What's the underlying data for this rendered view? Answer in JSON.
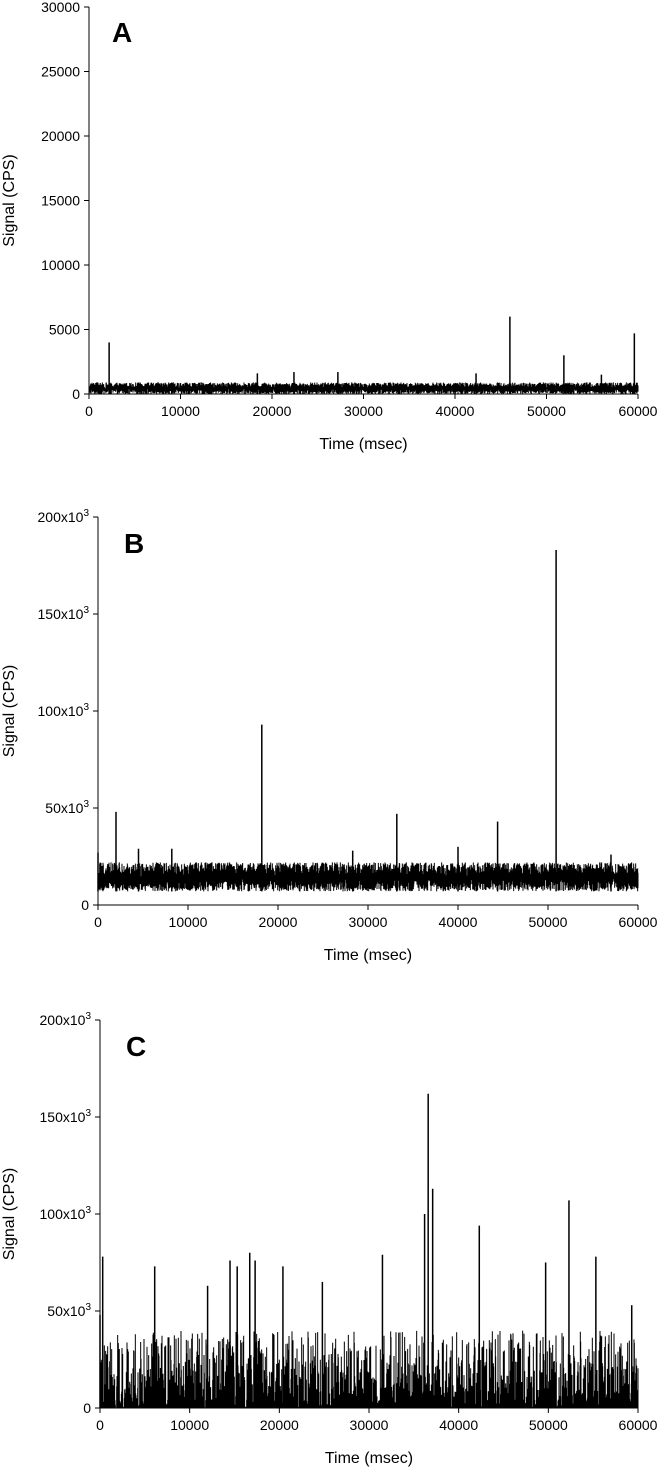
{
  "chart_data": [
    {
      "type": "line",
      "panel_label": "A",
      "xlabel": "Time (msec)",
      "ylabel": "Signal (CPS)",
      "xlim": [
        0,
        60000
      ],
      "ylim": [
        0,
        30000
      ],
      "xticks": [
        0,
        10000,
        20000,
        30000,
        40000,
        50000,
        60000
      ],
      "xtick_labels": [
        "0",
        "10000",
        "20000",
        "30000",
        "40000",
        "50000",
        "60000"
      ],
      "yticks": [
        0,
        5000,
        10000,
        15000,
        20000,
        25000,
        30000
      ],
      "ytick_labels": [
        "0",
        "5000",
        "10000",
        "15000",
        "20000",
        "25000",
        "30000"
      ],
      "grid": false,
      "baseline_noise": {
        "low": 0,
        "high": 900,
        "x_start": 0,
        "x_end": 60000
      },
      "spikes": {
        "x": [
          2200,
          18400,
          22400,
          27200,
          42300,
          46000,
          51900,
          56000,
          59600
        ],
        "y": [
          4000,
          1600,
          1700,
          1700,
          1600,
          6000,
          3000,
          1500,
          4700
        ]
      }
    },
    {
      "type": "line",
      "panel_label": "B",
      "xlabel": "Time (msec)",
      "ylabel": "Signal (CPS)",
      "xlim": [
        0,
        60000
      ],
      "ylim": [
        0,
        200000
      ],
      "xticks": [
        0,
        10000,
        20000,
        30000,
        40000,
        50000,
        60000
      ],
      "xtick_labels": [
        "0",
        "10000",
        "20000",
        "30000",
        "40000",
        "50000",
        "60000"
      ],
      "yticks": [
        0,
        50000,
        100000,
        150000,
        200000
      ],
      "ytick_labels": [
        {
          "base": "0",
          "exp": ""
        },
        {
          "base": "50x10",
          "exp": "3"
        },
        {
          "base": "100x10",
          "exp": "3"
        },
        {
          "base": "150x10",
          "exp": "3"
        },
        {
          "base": "200x10",
          "exp": "3"
        }
      ],
      "grid": false,
      "baseline_noise": {
        "low": 7000,
        "high": 22000,
        "x_start": 0,
        "x_end": 60000
      },
      "spikes": {
        "x": [
          0,
          2000,
          4500,
          8200,
          18200,
          28300,
          33200,
          40000,
          44400,
          50900,
          57000
        ],
        "y": [
          27000,
          48000,
          29000,
          29000,
          93000,
          28000,
          47000,
          30000,
          43000,
          183000,
          26000
        ]
      }
    },
    {
      "type": "line",
      "panel_label": "C",
      "xlabel": "Time (msec)",
      "ylabel": "Signal (CPS)",
      "xlim": [
        0,
        60000
      ],
      "ylim": [
        0,
        200000
      ],
      "xticks": [
        0,
        10000,
        20000,
        30000,
        40000,
        50000,
        60000
      ],
      "xtick_labels": [
        "0",
        "10000",
        "20000",
        "30000",
        "40000",
        "50000",
        "60000"
      ],
      "yticks": [
        0,
        50000,
        100000,
        150000,
        200000
      ],
      "ytick_labels": [
        {
          "base": "0",
          "exp": ""
        },
        {
          "base": "50x10",
          "exp": "3"
        },
        {
          "base": "100x10",
          "exp": "3"
        },
        {
          "base": "150x10",
          "exp": "3"
        },
        {
          "base": "200x10",
          "exp": "3"
        }
      ],
      "grid": false,
      "baseline_noise": {
        "low": 0,
        "high": 25000,
        "x_start": 0,
        "x_end": 60000
      },
      "spikes": {
        "x": [
          0,
          300,
          6100,
          12000,
          14500,
          15300,
          16700,
          17300,
          20400,
          24800,
          31500,
          36200,
          36600,
          37100,
          42300,
          49700,
          52300,
          55300,
          59300
        ],
        "y": [
          48000,
          78000,
          73000,
          63000,
          76000,
          73000,
          80000,
          76000,
          73000,
          65000,
          79000,
          100000,
          162000,
          113000,
          94000,
          75000,
          107000,
          78000,
          53000
        ]
      }
    }
  ]
}
